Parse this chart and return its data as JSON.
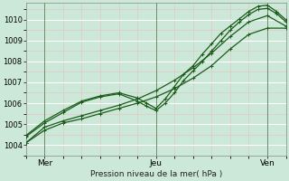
{
  "xlabel": "Pression niveau de la mer( hPa )",
  "bg_color": "#cce8d8",
  "plot_bg_color": "#cce8d8",
  "grid_color_major": "#ffffff",
  "grid_color_minor": "#e8c8c8",
  "line_color": "#1a5c1a",
  "xlim": [
    0,
    56
  ],
  "ylim": [
    1003.5,
    1010.8
  ],
  "yticks": [
    1004,
    1005,
    1006,
    1007,
    1008,
    1009,
    1010
  ],
  "xtick_positions": [
    4,
    28,
    52
  ],
  "xtick_labels": [
    "Mer",
    "Jeu",
    "Ven"
  ],
  "vline_positions": [
    4,
    28,
    52
  ],
  "series": [
    {
      "x": [
        0,
        4,
        8,
        12,
        16,
        20,
        24,
        28,
        32,
        36,
        40,
        44,
        48,
        52,
        56
      ],
      "y": [
        1004.1,
        1004.7,
        1005.05,
        1005.25,
        1005.5,
        1005.75,
        1006.0,
        1006.3,
        1006.7,
        1007.2,
        1007.8,
        1008.6,
        1009.3,
        1009.6,
        1009.6
      ],
      "marker": "+",
      "ms": 3,
      "lw": 0.9
    },
    {
      "x": [
        0,
        4,
        8,
        12,
        16,
        20,
        24,
        28,
        32,
        36,
        40,
        44,
        48,
        52,
        56
      ],
      "y": [
        1004.1,
        1004.85,
        1005.15,
        1005.4,
        1005.65,
        1005.9,
        1006.2,
        1006.6,
        1007.1,
        1007.7,
        1008.4,
        1009.2,
        1009.9,
        1010.2,
        1009.7
      ],
      "marker": "+",
      "ms": 3,
      "lw": 0.9
    },
    {
      "x": [
        0,
        4,
        8,
        12,
        16,
        20,
        24,
        26,
        28,
        30,
        32,
        34,
        36,
        38,
        40,
        42,
        44,
        46,
        48,
        50,
        52,
        54,
        56
      ],
      "y": [
        1004.4,
        1005.05,
        1005.55,
        1006.05,
        1006.3,
        1006.45,
        1006.1,
        1005.85,
        1005.65,
        1006.0,
        1006.5,
        1007.1,
        1007.55,
        1008.0,
        1008.5,
        1009.0,
        1009.5,
        1009.9,
        1010.25,
        1010.5,
        1010.55,
        1010.3,
        1009.9
      ],
      "marker": "+",
      "ms": 3.5,
      "lw": 0.9
    },
    {
      "x": [
        0,
        4,
        8,
        12,
        16,
        20,
        24,
        26,
        28,
        30,
        32,
        34,
        36,
        38,
        40,
        42,
        44,
        46,
        48,
        50,
        52,
        54,
        56
      ],
      "y": [
        1004.45,
        1005.15,
        1005.65,
        1006.1,
        1006.35,
        1006.5,
        1006.25,
        1006.0,
        1005.75,
        1006.2,
        1006.8,
        1007.4,
        1007.8,
        1008.35,
        1008.85,
        1009.35,
        1009.7,
        1010.05,
        1010.4,
        1010.65,
        1010.7,
        1010.4,
        1010.0
      ],
      "marker": "+",
      "ms": 3.5,
      "lw": 0.9
    }
  ]
}
